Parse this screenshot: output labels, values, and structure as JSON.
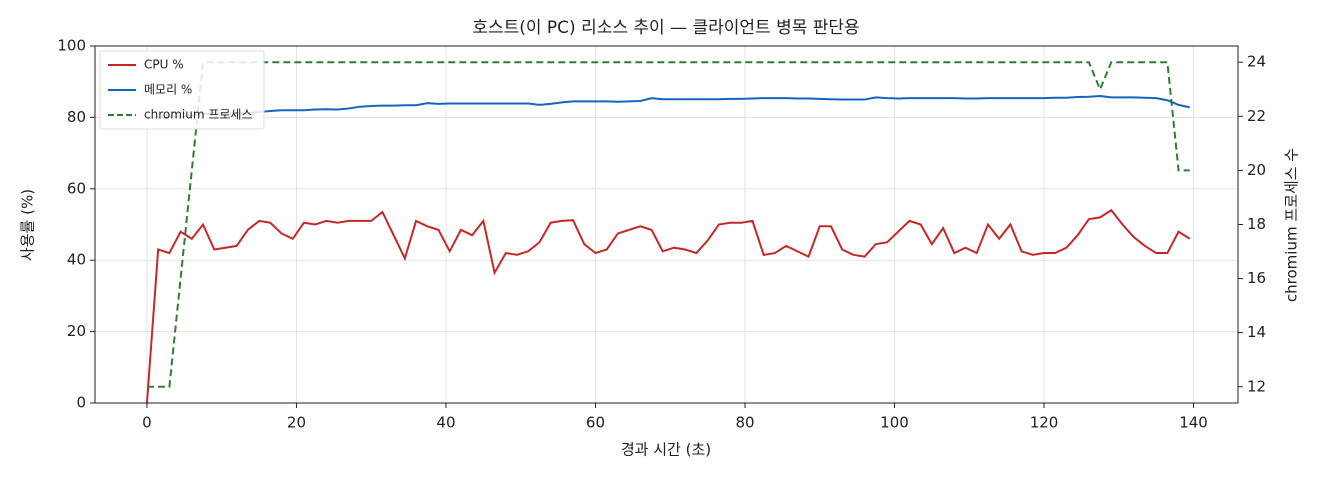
{
  "chart_data": {
    "type": "line",
    "title": "호스트(이 PC) 리소스 추이 — 클라이언트 병목 판단용",
    "x_label": "경과 시간 (초)",
    "y_label": "사용률 (%)",
    "y2_label": "chromium 프로세스 수",
    "x": [
      0,
      1.5,
      3,
      4.5,
      6,
      7.5,
      9,
      10.5,
      12,
      13.5,
      15,
      16.5,
      18,
      19.5,
      21,
      22.5,
      24,
      25.5,
      27,
      28.5,
      30,
      31.5,
      33,
      34.5,
      36,
      37.5,
      39,
      40.5,
      42,
      43.5,
      45,
      46.5,
      48,
      49.5,
      51,
      52.5,
      54,
      55.5,
      57,
      58.5,
      60,
      61.5,
      63,
      64.5,
      66,
      67.5,
      69,
      70.5,
      72,
      73.5,
      75,
      76.5,
      78,
      79.5,
      81,
      82.5,
      84,
      85.5,
      87,
      88.5,
      90,
      91.5,
      93,
      94.5,
      96,
      97.5,
      99,
      100.5,
      102,
      103.5,
      105,
      106.5,
      108,
      109.5,
      111,
      112.5,
      114,
      115.5,
      117,
      118.5,
      120,
      121.5,
      123,
      124.5,
      126,
      127.5,
      129,
      130.5,
      132,
      133.5,
      135,
      136.5,
      138,
      139.5
    ],
    "series": [
      {
        "name": "CPU %",
        "color": "#c62828",
        "linestyle": "solid",
        "axis": "y",
        "values": [
          0,
          43,
          42,
          48,
          46,
          50,
          43,
          43.5,
          44,
          48.5,
          51,
          50.5,
          47.5,
          46,
          50.5,
          50,
          51,
          50.5,
          51,
          51,
          51,
          53.5,
          47,
          40.5,
          51,
          49.5,
          48.5,
          42.5,
          48.5,
          47,
          51,
          36.5,
          42,
          41.5,
          42.5,
          45,
          50.5,
          51,
          51.2,
          44.5,
          42,
          43,
          47.5,
          48.5,
          49.5,
          48.5,
          42.5,
          43.5,
          43,
          42,
          45.5,
          50,
          50.5,
          50.5,
          51,
          41.5,
          42,
          44,
          42.5,
          41,
          49.5,
          49.5,
          43,
          41.5,
          41,
          44.5,
          45,
          48,
          51,
          50,
          44.5,
          49,
          42,
          43.5,
          42,
          50,
          46,
          50,
          42.5,
          41.5,
          42,
          42,
          43.5,
          47,
          51.5,
          52,
          54,
          50,
          46.5,
          44,
          42,
          42,
          48,
          46
        ]
      },
      {
        "name": "메모리 %",
        "color": "#1565c0",
        "linestyle": "solid",
        "axis": "y",
        "values": [
          80,
          80,
          80,
          80.2,
          80.5,
          81,
          81,
          81,
          81.2,
          81.2,
          81.5,
          81.8,
          82,
          82,
          82,
          82.2,
          82.3,
          82.2,
          82.5,
          83,
          83.2,
          83.3,
          83.3,
          83.4,
          83.4,
          84,
          83.8,
          83.9,
          83.9,
          83.9,
          83.9,
          83.9,
          83.9,
          83.9,
          83.9,
          83.5,
          83.8,
          84.2,
          84.5,
          84.5,
          84.5,
          84.5,
          84.4,
          84.5,
          84.6,
          85.4,
          85.1,
          85.1,
          85.1,
          85.1,
          85.1,
          85.1,
          85.2,
          85.2,
          85.3,
          85.4,
          85.4,
          85.4,
          85.3,
          85.3,
          85.2,
          85.1,
          85,
          85,
          85,
          85.6,
          85.4,
          85.3,
          85.4,
          85.4,
          85.4,
          85.4,
          85.4,
          85.3,
          85.3,
          85.4,
          85.4,
          85.4,
          85.4,
          85.4,
          85.4,
          85.5,
          85.5,
          85.7,
          85.8,
          86,
          85.6,
          85.6,
          85.6,
          85.5,
          85.4,
          84.8,
          83.5,
          82.8
        ]
      },
      {
        "name": "chromium 프로세스",
        "color": "#2e7d32",
        "linestyle": "dashed",
        "axis": "y2",
        "values": [
          12,
          12,
          12,
          16,
          20,
          24,
          24,
          24,
          24,
          24,
          24,
          24,
          24,
          24,
          24,
          24,
          24,
          24,
          24,
          24,
          24,
          24,
          24,
          24,
          24,
          24,
          24,
          24,
          24,
          24,
          24,
          24,
          24,
          24,
          24,
          24,
          24,
          24,
          24,
          24,
          24,
          24,
          24,
          24,
          24,
          24,
          24,
          24,
          24,
          24,
          24,
          24,
          24,
          24,
          24,
          24,
          24,
          24,
          24,
          24,
          24,
          24,
          24,
          24,
          24,
          24,
          24,
          24,
          24,
          24,
          24,
          24,
          24,
          24,
          24,
          24,
          24,
          24,
          24,
          24,
          24,
          24,
          24,
          24,
          24,
          23,
          24,
          24,
          24,
          24,
          24,
          24,
          20,
          20
        ]
      }
    ],
    "xlim": [
      -6.95,
      145.95
    ],
    "xticks": [
      0,
      20,
      40,
      60,
      80,
      100,
      120,
      140
    ],
    "ylim": [
      0,
      100
    ],
    "yticks": [
      0,
      20,
      40,
      60,
      80,
      100
    ],
    "y2lim": [
      11.4,
      24.6
    ],
    "y2ticks": [
      12,
      14,
      16,
      18,
      20,
      22,
      24
    ],
    "grid": true,
    "legend": "upper-left"
  }
}
